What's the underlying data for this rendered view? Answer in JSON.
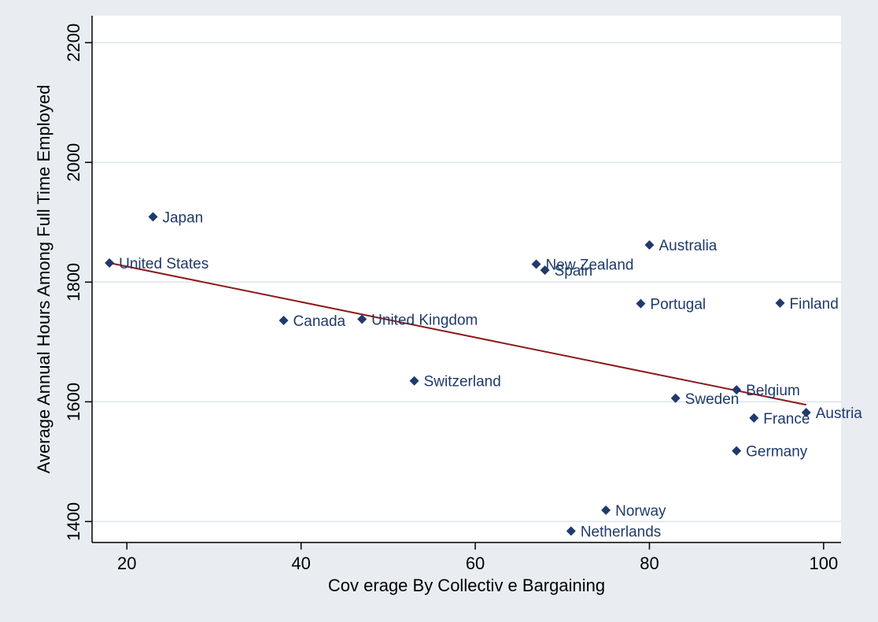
{
  "chart_data": {
    "type": "scatter",
    "title": "",
    "xlabel": "Cov erage By  Collectiv e Bargaining",
    "ylabel": "Average Annual Hours Among Full Time Employed",
    "xlim": [
      16,
      102
    ],
    "ylim": [
      1365,
      2245
    ],
    "x_ticks": [
      20,
      40,
      60,
      80,
      100
    ],
    "y_ticks": [
      1400,
      1600,
      1800,
      2000,
      2200
    ],
    "grid": "horizontal",
    "colors": {
      "background": "#e9edf2",
      "plot_background": "#ffffff",
      "grid": "#dfe4ea",
      "marker": "#1f3a6b",
      "label": "#1f3a6b",
      "fit_line": "#8b1a1a"
    },
    "points": [
      {
        "label": "United States",
        "x": 18,
        "y": 1832
      },
      {
        "label": "Japan",
        "x": 23,
        "y": 1909
      },
      {
        "label": "Canada",
        "x": 38,
        "y": 1736
      },
      {
        "label": "United Kingdom",
        "x": 47,
        "y": 1738
      },
      {
        "label": "Switzerland",
        "x": 53,
        "y": 1635
      },
      {
        "label": "New Zealand",
        "x": 67,
        "y": 1830
      },
      {
        "label": "Spain",
        "x": 68,
        "y": 1820
      },
      {
        "label": "Netherlands",
        "x": 71,
        "y": 1384
      },
      {
        "label": "Norway",
        "x": 75,
        "y": 1419
      },
      {
        "label": "Portugal",
        "x": 79,
        "y": 1764
      },
      {
        "label": "Australia",
        "x": 80,
        "y": 1862
      },
      {
        "label": "Sweden",
        "x": 83,
        "y": 1606
      },
      {
        "label": "Belgium",
        "x": 90,
        "y": 1620
      },
      {
        "label": "Germany",
        "x": 90,
        "y": 1518
      },
      {
        "label": "France",
        "x": 92,
        "y": 1573
      },
      {
        "label": "Finland",
        "x": 95,
        "y": 1765
      },
      {
        "label": "Austria",
        "x": 98,
        "y": 1582
      }
    ],
    "fit_line": {
      "x": [
        18,
        98
      ],
      "y": [
        1832,
        1595
      ]
    }
  }
}
